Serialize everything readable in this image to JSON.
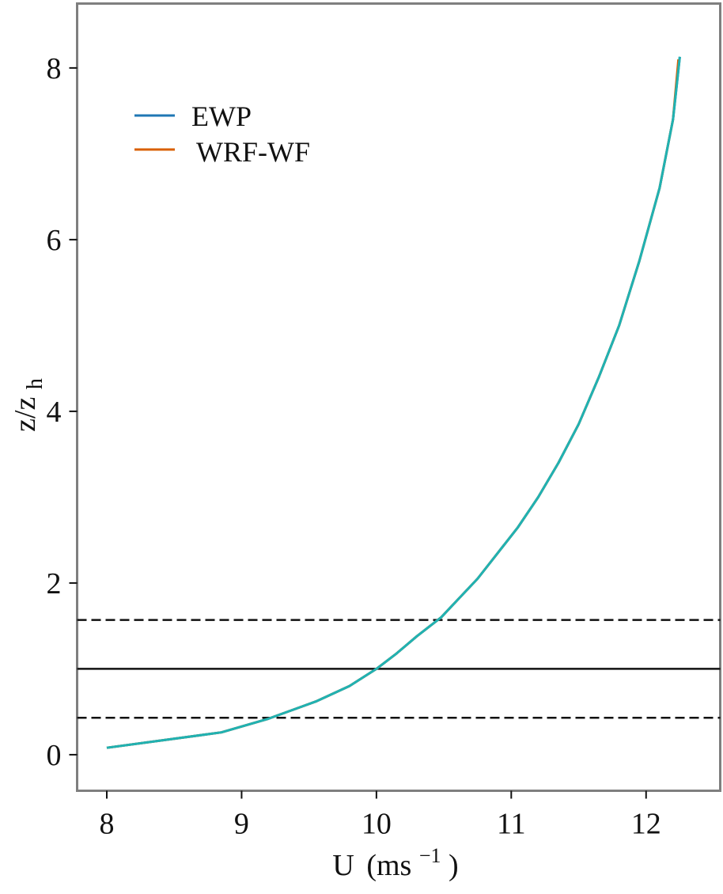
{
  "chart_data": {
    "type": "line",
    "xlabel": "U",
    "xlabel_unit": "(ms",
    "xlabel_unit_exp": "−1",
    "xlabel_unit_close": ")",
    "ylabel": "z/z",
    "ylabel_sub": "h",
    "xlim": [
      7.78,
      12.55
    ],
    "ylim": [
      -0.42,
      8.75
    ],
    "xticks": [
      8,
      9,
      10,
      11,
      12
    ],
    "yticks": [
      0,
      2,
      4,
      6,
      8
    ],
    "legend_position": "top-left",
    "grid": false,
    "series": [
      {
        "name": "EWP",
        "color": "#1f77b4",
        "x": [
          8.0,
          8.85,
          9.2,
          9.55,
          9.8,
          10.0,
          10.15,
          10.3,
          10.48,
          10.6,
          10.75,
          10.9,
          11.05,
          11.2,
          11.35,
          11.5,
          11.65,
          11.8,
          11.95,
          12.1,
          12.2,
          12.25
        ],
        "y": [
          0.08,
          0.26,
          0.42,
          0.62,
          0.8,
          1.0,
          1.18,
          1.38,
          1.6,
          1.8,
          2.05,
          2.35,
          2.65,
          3.0,
          3.4,
          3.85,
          4.4,
          5.0,
          5.75,
          6.6,
          7.4,
          8.13
        ]
      },
      {
        "name": "WRF-WF",
        "color": "#d95f02",
        "x": [
          8.0,
          8.85,
          9.2,
          9.55,
          9.8,
          10.0,
          10.15,
          10.3,
          10.48,
          10.6,
          10.75,
          10.9,
          11.05,
          11.2,
          11.35,
          11.5,
          11.65,
          11.8,
          11.95,
          12.1,
          12.2,
          12.24
        ],
        "y": [
          0.08,
          0.26,
          0.42,
          0.62,
          0.8,
          1.0,
          1.18,
          1.38,
          1.6,
          1.8,
          2.05,
          2.35,
          2.65,
          3.0,
          3.4,
          3.85,
          4.4,
          5.0,
          5.75,
          6.6,
          7.4,
          8.1
        ]
      },
      {
        "color": "#20b2b2",
        "x": [
          8.0,
          8.85,
          9.2,
          9.55,
          9.8,
          10.0,
          10.15,
          10.3,
          10.48,
          10.6,
          10.75,
          10.9,
          11.05,
          11.2,
          11.35,
          11.5,
          11.65,
          11.8,
          11.95,
          12.1,
          12.2,
          12.25
        ],
        "y": [
          0.08,
          0.26,
          0.42,
          0.62,
          0.8,
          1.0,
          1.18,
          1.38,
          1.6,
          1.8,
          2.05,
          2.35,
          2.65,
          3.0,
          3.4,
          3.85,
          4.4,
          5.0,
          5.75,
          6.6,
          7.4,
          8.13
        ]
      }
    ],
    "hlines": [
      {
        "y": 1.57,
        "style": "dashed",
        "color": "#111111"
      },
      {
        "y": 1.0,
        "style": "solid",
        "color": "#111111"
      },
      {
        "y": 0.43,
        "style": "dashed",
        "color": "#111111"
      }
    ],
    "frame_color": "#7f7f7f"
  }
}
